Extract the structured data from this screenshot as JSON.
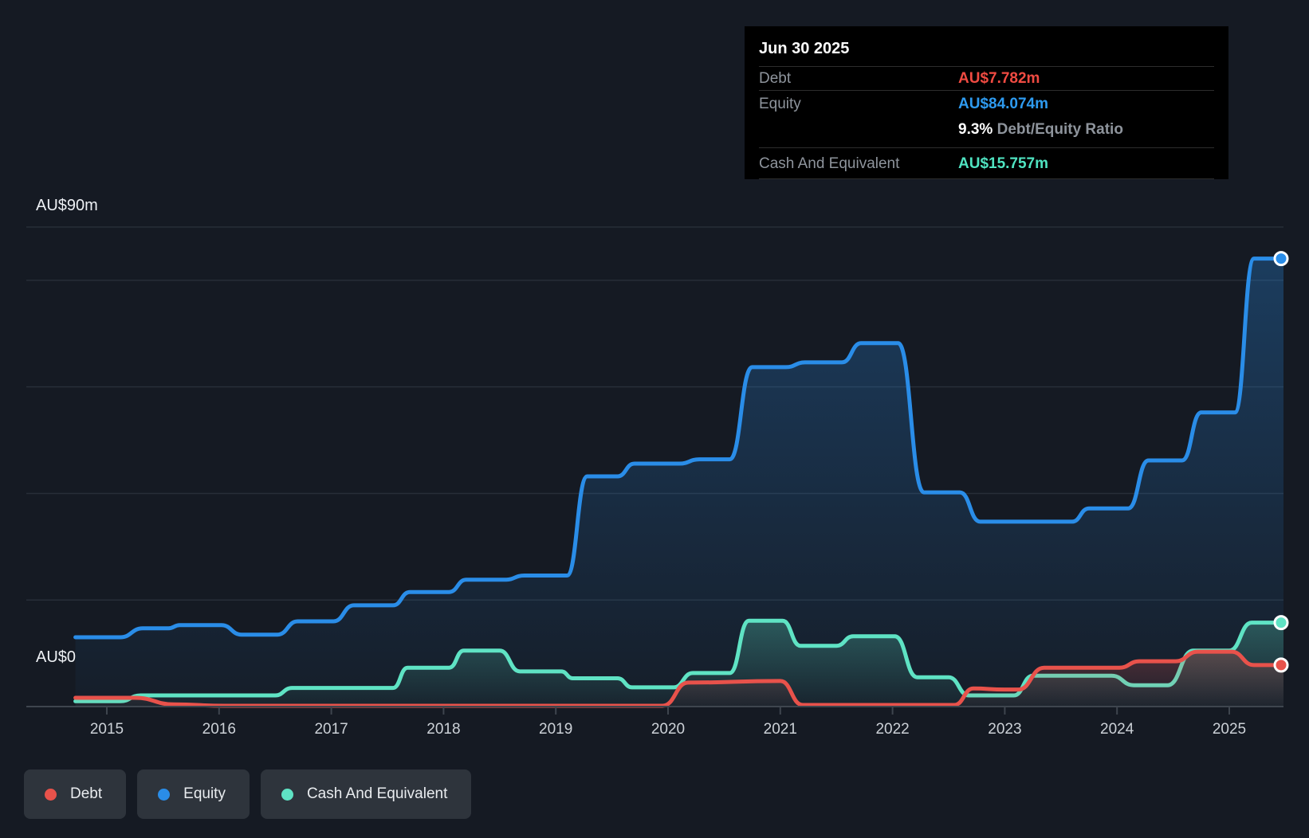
{
  "tooltip": {
    "date": "Jun 30 2025",
    "debt": {
      "label": "Debt",
      "value": "AU$7.782m"
    },
    "equity": {
      "label": "Equity",
      "value": "AU$84.074m"
    },
    "ratio": {
      "value": "9.3%",
      "label": " Debt/Equity Ratio"
    },
    "cash": {
      "label": "Cash And Equivalent",
      "value": "AU$15.757m"
    }
  },
  "legend": [
    {
      "label": "Debt",
      "color": "#e8524b"
    },
    {
      "label": "Equity",
      "color": "#2a8de8"
    },
    {
      "label": "Cash And Equivalent",
      "color": "#5fe3c4"
    }
  ],
  "chart_data": {
    "type": "area",
    "as_of": "Jun 30 2025",
    "ylim": [
      0,
      90
    ],
    "ylabel_top": "AU$90m",
    "ylabel_zero": "AU$0",
    "gridline_values": [
      90,
      80,
      60,
      40,
      20
    ],
    "x_tick_labels": [
      "2015",
      "2016",
      "2017",
      "2018",
      "2019",
      "2020",
      "2021",
      "2022",
      "2023",
      "2024",
      "2025"
    ],
    "grid_on": true,
    "legend_position": "bottom-left",
    "series": [
      {
        "name": "Equity",
        "color": "#2a8de8",
        "final_value_label": "AU$84.074m",
        "points": [
          [
            2014.72,
            13.0
          ],
          [
            2015.12,
            13.0
          ],
          [
            2015.32,
            14.7
          ],
          [
            2015.55,
            14.7
          ],
          [
            2015.65,
            15.3
          ],
          [
            2016.02,
            15.3
          ],
          [
            2016.2,
            13.5
          ],
          [
            2016.52,
            13.5
          ],
          [
            2016.7,
            16.0
          ],
          [
            2017.02,
            16.0
          ],
          [
            2017.2,
            19.0
          ],
          [
            2017.55,
            19.0
          ],
          [
            2017.7,
            21.5
          ],
          [
            2018.05,
            21.5
          ],
          [
            2018.2,
            23.8
          ],
          [
            2018.55,
            23.8
          ],
          [
            2018.72,
            24.6
          ],
          [
            2019.1,
            24.6
          ],
          [
            2019.28,
            43.2
          ],
          [
            2019.55,
            43.2
          ],
          [
            2019.7,
            45.6
          ],
          [
            2020.1,
            45.6
          ],
          [
            2020.28,
            46.4
          ],
          [
            2020.55,
            46.4
          ],
          [
            2020.75,
            63.7
          ],
          [
            2021.05,
            63.7
          ],
          [
            2021.22,
            64.6
          ],
          [
            2021.55,
            64.6
          ],
          [
            2021.72,
            68.2
          ],
          [
            2022.05,
            68.2
          ],
          [
            2022.28,
            40.2
          ],
          [
            2022.6,
            40.2
          ],
          [
            2022.78,
            34.7
          ],
          [
            2023.6,
            34.7
          ],
          [
            2023.75,
            37.2
          ],
          [
            2024.1,
            37.2
          ],
          [
            2024.28,
            46.2
          ],
          [
            2024.58,
            46.2
          ],
          [
            2024.75,
            55.2
          ],
          [
            2025.05,
            55.2
          ],
          [
            2025.22,
            84.074
          ],
          [
            2025.5,
            84.074
          ]
        ]
      },
      {
        "name": "Cash And Equivalent",
        "color": "#5fe3c4",
        "final_value_label": "AU$15.757m",
        "points": [
          [
            2014.72,
            1.0
          ],
          [
            2015.12,
            1.0
          ],
          [
            2015.3,
            2.1
          ],
          [
            2016.5,
            2.1
          ],
          [
            2016.65,
            3.5
          ],
          [
            2017.55,
            3.5
          ],
          [
            2017.68,
            7.3
          ],
          [
            2018.05,
            7.3
          ],
          [
            2018.18,
            10.5
          ],
          [
            2018.5,
            10.5
          ],
          [
            2018.68,
            6.6
          ],
          [
            2019.05,
            6.6
          ],
          [
            2019.15,
            5.3
          ],
          [
            2019.55,
            5.3
          ],
          [
            2019.68,
            3.6
          ],
          [
            2020.05,
            3.6
          ],
          [
            2020.22,
            6.3
          ],
          [
            2020.55,
            6.3
          ],
          [
            2020.72,
            16.1
          ],
          [
            2021.02,
            16.1
          ],
          [
            2021.18,
            11.4
          ],
          [
            2021.5,
            11.4
          ],
          [
            2021.65,
            13.2
          ],
          [
            2022.02,
            13.2
          ],
          [
            2022.22,
            5.5
          ],
          [
            2022.5,
            5.5
          ],
          [
            2022.68,
            2.1
          ],
          [
            2023.08,
            2.1
          ],
          [
            2023.25,
            5.8
          ],
          [
            2023.95,
            5.8
          ],
          [
            2024.15,
            4.0
          ],
          [
            2024.45,
            4.0
          ],
          [
            2024.68,
            10.5
          ],
          [
            2025.0,
            10.5
          ],
          [
            2025.2,
            15.757
          ],
          [
            2025.5,
            15.757
          ]
        ]
      },
      {
        "name": "Debt",
        "color": "#e8524b",
        "final_value_label": "AU$7.782m",
        "points": [
          [
            2014.72,
            1.65
          ],
          [
            2015.25,
            1.65
          ],
          [
            2015.6,
            0.4
          ],
          [
            2016.05,
            0.15
          ],
          [
            2019.95,
            0.15
          ],
          [
            2020.18,
            4.5
          ],
          [
            2021.0,
            4.8
          ],
          [
            2021.2,
            0.3
          ],
          [
            2022.55,
            0.3
          ],
          [
            2022.72,
            3.4
          ],
          [
            2023.0,
            3.2
          ],
          [
            2023.12,
            3.2
          ],
          [
            2023.35,
            7.3
          ],
          [
            2024.02,
            7.3
          ],
          [
            2024.2,
            8.5
          ],
          [
            2024.52,
            8.5
          ],
          [
            2024.72,
            10.3
          ],
          [
            2025.02,
            10.3
          ],
          [
            2025.22,
            7.782
          ],
          [
            2025.5,
            7.782
          ]
        ]
      }
    ]
  }
}
